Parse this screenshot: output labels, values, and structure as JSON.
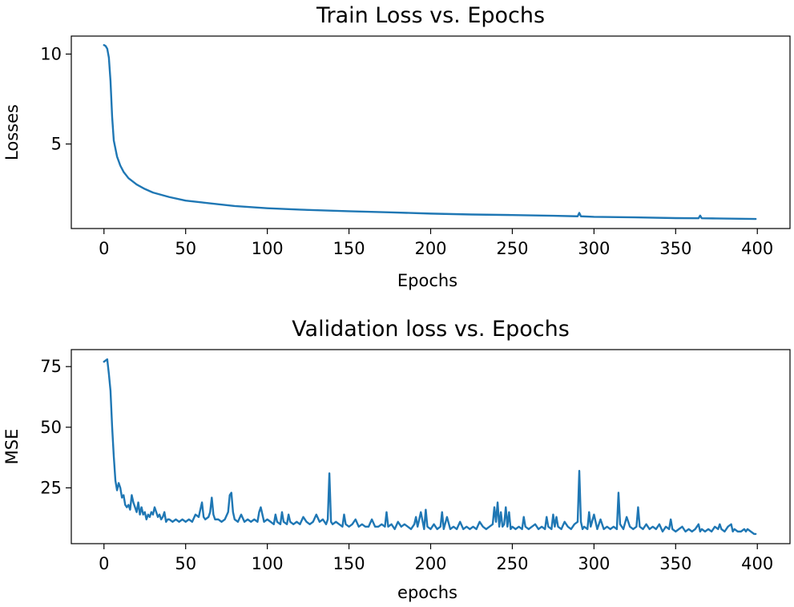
{
  "chart_data": [
    {
      "type": "line",
      "title": "Train Loss vs. Epochs",
      "xlabel": "Epochs",
      "ylabel": "Losses",
      "xlim": [
        -20,
        420
      ],
      "ylim": [
        0.3,
        11
      ],
      "xticks": [
        0,
        50,
        100,
        150,
        200,
        250,
        300,
        350,
        400
      ],
      "yticks": [
        5,
        10
      ],
      "grid": false,
      "series": [
        {
          "name": "train loss",
          "color": "#1f77b4",
          "x": [
            0,
            1,
            2,
            3,
            4,
            5,
            6,
            8,
            10,
            12,
            15,
            20,
            25,
            30,
            40,
            50,
            60,
            80,
            100,
            120,
            150,
            175,
            200,
            225,
            250,
            275,
            290,
            291,
            292,
            300,
            325,
            350,
            364,
            365,
            366,
            375,
            399
          ],
          "values": [
            10.5,
            10.45,
            10.3,
            9.8,
            8.5,
            6.5,
            5.2,
            4.3,
            3.8,
            3.45,
            3.1,
            2.75,
            2.5,
            2.3,
            2.05,
            1.85,
            1.75,
            1.55,
            1.43,
            1.35,
            1.26,
            1.2,
            1.13,
            1.08,
            1.05,
            1.01,
            0.98,
            1.17,
            0.98,
            0.95,
            0.92,
            0.88,
            0.87,
            1.02,
            0.87,
            0.86,
            0.83
          ]
        }
      ]
    },
    {
      "type": "line",
      "title": "Validation loss vs. Epochs",
      "xlabel": "epochs",
      "ylabel": "MSE",
      "xlim": [
        -20,
        420
      ],
      "ylim": [
        2,
        82
      ],
      "xticks": [
        0,
        50,
        100,
        150,
        200,
        250,
        300,
        350,
        400
      ],
      "yticks": [
        25,
        50,
        75
      ],
      "grid": false,
      "series": [
        {
          "name": "validation MSE",
          "color": "#1f77b4",
          "x": [
            0,
            1,
            2,
            3,
            4,
            5,
            6,
            7,
            8,
            9,
            10,
            11,
            12,
            13,
            14,
            15,
            16,
            17,
            18,
            19,
            20,
            21,
            22,
            23,
            24,
            25,
            26,
            27,
            28,
            29,
            30,
            31,
            32,
            33,
            34,
            35,
            36,
            37,
            38,
            39,
            40,
            42,
            44,
            46,
            48,
            50,
            52,
            54,
            56,
            58,
            59,
            60,
            61,
            62,
            64,
            65,
            66,
            67,
            68,
            70,
            72,
            74,
            76,
            77,
            78,
            79,
            80,
            82,
            84,
            86,
            88,
            90,
            92,
            94,
            95,
            96,
            98,
            100,
            102,
            104,
            105,
            106,
            108,
            109,
            110,
            112,
            113,
            114,
            116,
            118,
            120,
            122,
            124,
            126,
            128,
            130,
            132,
            134,
            136,
            137,
            138,
            139,
            140,
            142,
            144,
            146,
            147,
            148,
            150,
            152,
            154,
            156,
            158,
            160,
            162,
            164,
            166,
            168,
            170,
            172,
            173,
            174,
            176,
            178,
            180,
            182,
            184,
            186,
            188,
            190,
            191,
            192,
            194,
            196,
            197,
            198,
            200,
            202,
            204,
            206,
            207,
            208,
            210,
            212,
            214,
            216,
            218,
            220,
            222,
            224,
            226,
            228,
            230,
            232,
            234,
            236,
            238,
            239,
            240,
            241,
            242,
            243,
            244,
            245,
            246,
            247,
            248,
            249,
            250,
            252,
            254,
            256,
            257,
            258,
            260,
            262,
            264,
            266,
            268,
            270,
            271,
            272,
            274,
            275,
            276,
            277,
            278,
            280,
            282,
            284,
            286,
            288,
            290,
            291,
            292,
            293,
            294,
            296,
            297,
            298,
            300,
            302,
            304,
            306,
            308,
            310,
            312,
            314,
            315,
            316,
            318,
            320,
            322,
            324,
            326,
            327,
            328,
            330,
            332,
            334,
            336,
            338,
            340,
            342,
            344,
            346,
            347,
            348,
            350,
            352,
            354,
            356,
            358,
            360,
            362,
            364,
            365,
            366,
            368,
            370,
            372,
            374,
            376,
            377,
            378,
            380,
            382,
            384,
            385,
            386,
            388,
            390,
            392,
            393,
            394,
            396,
            398,
            399
          ],
          "values": [
            77,
            77.5,
            78,
            72,
            65,
            50,
            38,
            28,
            24,
            27,
            25,
            21,
            22,
            18,
            17,
            18,
            16,
            22,
            19,
            17,
            15,
            19,
            14,
            17,
            14,
            15,
            12,
            14,
            13,
            15,
            14,
            17,
            15,
            13,
            14,
            12,
            13,
            15,
            11,
            12,
            12,
            11,
            12,
            11,
            12,
            11,
            12,
            11,
            14,
            13,
            16,
            19,
            13,
            12,
            13,
            15,
            21,
            14,
            12,
            12,
            11,
            12,
            15,
            22,
            23,
            15,
            12,
            11,
            14,
            11,
            12,
            11,
            12,
            11,
            15,
            17,
            11,
            12,
            11,
            10,
            14,
            11,
            10,
            15,
            11,
            10,
            14,
            11,
            10,
            11,
            10,
            13,
            11,
            10,
            11,
            14,
            11,
            12,
            10,
            12,
            31,
            11,
            10,
            11,
            10,
            9,
            14,
            10,
            9,
            10,
            12,
            9,
            10,
            9,
            9,
            12,
            9,
            9,
            10,
            9,
            15,
            9,
            10,
            8,
            11,
            9,
            10,
            9,
            8,
            10,
            13,
            9,
            15,
            8,
            16,
            9,
            8,
            10,
            8,
            9,
            15,
            8,
            13,
            8,
            9,
            8,
            11,
            8,
            9,
            8,
            9,
            8,
            11,
            9,
            8,
            9,
            10,
            17,
            11,
            19,
            9,
            15,
            9,
            10,
            17,
            9,
            15,
            8,
            9,
            8,
            9,
            8,
            13,
            9,
            8,
            9,
            10,
            8,
            9,
            8,
            13,
            9,
            8,
            14,
            9,
            13,
            9,
            8,
            11,
            9,
            8,
            10,
            11,
            32,
            11,
            8,
            9,
            8,
            15,
            9,
            14,
            8,
            12,
            8,
            9,
            8,
            9,
            8,
            23,
            10,
            8,
            13,
            9,
            8,
            9,
            17,
            9,
            8,
            10,
            8,
            9,
            8,
            10,
            7,
            9,
            8,
            12,
            8,
            7,
            8,
            9,
            7,
            8,
            7,
            8,
            10,
            7,
            8,
            7,
            8,
            7,
            9,
            8,
            10,
            8,
            7,
            9,
            10,
            7,
            8,
            7,
            7,
            8,
            7,
            8,
            7,
            6,
            6
          ]
        }
      ]
    }
  ]
}
